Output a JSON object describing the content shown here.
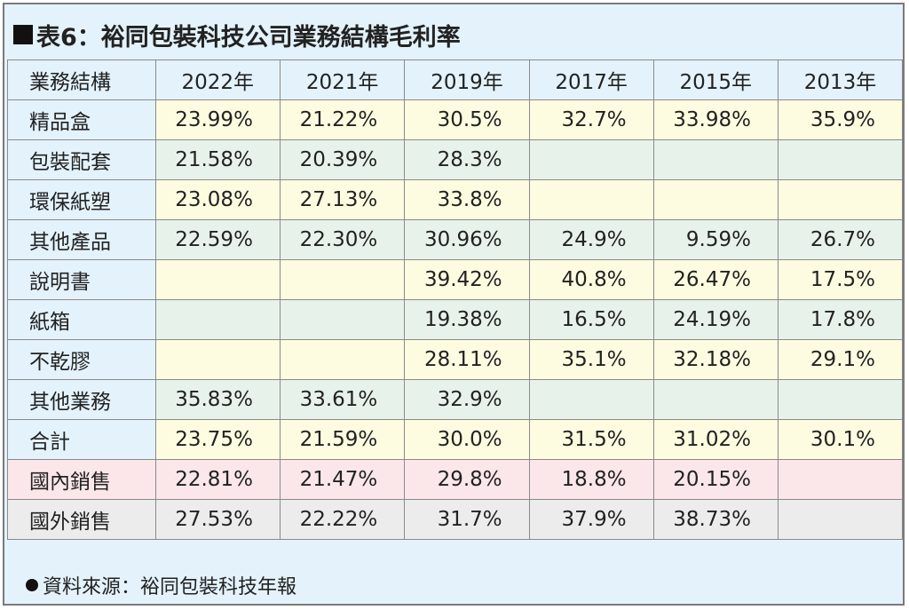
{
  "title": "表6：裕同包裝科技公司業務結構毛利率",
  "source": "資料來源：裕同包裝科技年報",
  "chart_data": {
    "type": "table",
    "title": "表6：裕同包裝科技公司業務結構毛利率",
    "columns": [
      "業務結構",
      "2022年",
      "2021年",
      "2019年",
      "2017年",
      "2015年",
      "2013年"
    ],
    "rows": [
      {
        "label": "精品盒",
        "values": [
          "23.99%",
          "21.22%",
          "30.5%",
          "32.7%",
          "33.98%",
          "35.9%"
        ]
      },
      {
        "label": "包裝配套",
        "values": [
          "21.58%",
          "20.39%",
          "28.3%",
          "",
          "",
          ""
        ]
      },
      {
        "label": "環保紙塑",
        "values": [
          "23.08%",
          "27.13%",
          "33.8%",
          "",
          "",
          ""
        ]
      },
      {
        "label": "其他產品",
        "values": [
          "22.59%",
          "22.30%",
          "30.96%",
          "24.9%",
          "9.59%",
          "26.7%"
        ]
      },
      {
        "label": "說明書",
        "values": [
          "",
          "",
          "39.42%",
          "40.8%",
          "26.47%",
          "17.5%"
        ]
      },
      {
        "label": "紙箱",
        "values": [
          "",
          "",
          "19.38%",
          "16.5%",
          "24.19%",
          "17.8%"
        ]
      },
      {
        "label": "不乾膠",
        "values": [
          "",
          "",
          "28.11%",
          "35.1%",
          "32.18%",
          "29.1%"
        ]
      },
      {
        "label": "其他業務",
        "values": [
          "35.83%",
          "33.61%",
          "32.9%",
          "",
          "",
          ""
        ]
      },
      {
        "label": "合計",
        "values": [
          "23.75%",
          "21.59%",
          "30.0%",
          "31.5%",
          "31.02%",
          "30.1%"
        ]
      },
      {
        "label": "國內銷售",
        "values": [
          "22.81%",
          "21.47%",
          "29.8%",
          "18.8%",
          "20.15%",
          ""
        ]
      },
      {
        "label": "國外銷售",
        "values": [
          "27.53%",
          "22.22%",
          "31.7%",
          "37.9%",
          "38.73%",
          ""
        ]
      }
    ]
  }
}
